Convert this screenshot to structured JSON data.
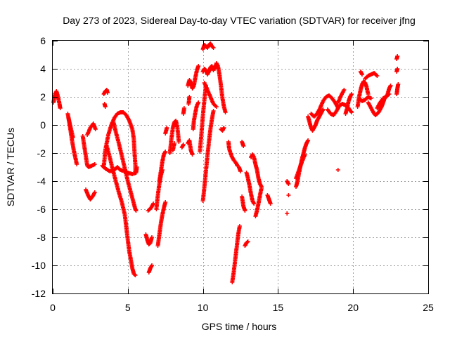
{
  "chart_data": {
    "type": "scatter",
    "title": "Day 273 of 2023, Sidereal Day-to-day VTEC variation (SDTVAR) for receiver jfng",
    "xlabel": "GPS time / hours",
    "ylabel": "SDTVAR / TECUs",
    "xlim": [
      0,
      25
    ],
    "ylim": [
      -12,
      6
    ],
    "xticks": [
      0,
      5,
      10,
      15,
      20,
      25
    ],
    "yticks": [
      -12,
      -10,
      -8,
      -6,
      -4,
      -2,
      0,
      2,
      4,
      6
    ],
    "grid": true,
    "marker": "plus",
    "color": "#ff0000",
    "segments": [
      [
        [
          0.05,
          1.6
        ],
        [
          0.15,
          2.2
        ],
        [
          0.25,
          2.4
        ],
        [
          0.35,
          2.0
        ],
        [
          0.45,
          1.5
        ],
        [
          0.5,
          1.2
        ]
      ],
      [
        [
          1.0,
          0.8
        ],
        [
          1.1,
          0.2
        ],
        [
          1.2,
          -0.5
        ],
        [
          1.3,
          -1.2
        ],
        [
          1.4,
          -1.8
        ],
        [
          1.5,
          -2.3
        ],
        [
          1.6,
          -2.8
        ]
      ],
      [
        [
          1.05,
          0.5
        ],
        [
          1.2,
          -0.2
        ],
        [
          1.35,
          -0.9
        ]
      ],
      [
        [
          2.0,
          -0.8
        ],
        [
          2.1,
          -1.5
        ],
        [
          2.2,
          -2.2
        ],
        [
          2.3,
          -2.9
        ],
        [
          2.4,
          -3.0
        ],
        [
          2.6,
          -2.9
        ],
        [
          2.8,
          -2.8
        ]
      ],
      [
        [
          2.2,
          -4.6
        ],
        [
          2.35,
          -5.0
        ],
        [
          2.5,
          -5.3
        ],
        [
          2.65,
          -5.1
        ],
        [
          2.8,
          -4.8
        ]
      ],
      [
        [
          2.3,
          -0.7
        ],
        [
          2.5,
          -0.2
        ],
        [
          2.7,
          0.1
        ],
        [
          2.85,
          -0.3
        ]
      ],
      [
        [
          3.4,
          2.2
        ],
        [
          3.5,
          2.4
        ],
        [
          3.6,
          2.5
        ],
        [
          3.65,
          2.3
        ]
      ],
      [
        [
          3.45,
          1.5
        ],
        [
          3.5,
          1.3
        ]
      ],
      [
        [
          3.4,
          -3.0
        ],
        [
          3.5,
          -1.8
        ],
        [
          3.7,
          -0.7
        ],
        [
          3.9,
          0.0
        ],
        [
          4.1,
          0.5
        ],
        [
          4.3,
          0.8
        ],
        [
          4.5,
          0.9
        ],
        [
          4.7,
          0.9
        ],
        [
          4.9,
          0.7
        ],
        [
          5.1,
          0.3
        ],
        [
          5.3,
          -0.3
        ],
        [
          5.4,
          -1.0
        ],
        [
          5.45,
          -2.0
        ],
        [
          5.5,
          -2.8
        ],
        [
          5.5,
          -3.4
        ]
      ],
      [
        [
          3.3,
          -2.9
        ],
        [
          3.5,
          -3.1
        ],
        [
          3.8,
          -3.3
        ],
        [
          4.1,
          -3.2
        ],
        [
          4.3,
          -3.0
        ],
        [
          4.5,
          -3.2
        ],
        [
          4.8,
          -3.3
        ],
        [
          5.0,
          -3.4
        ],
        [
          5.3,
          -3.5
        ],
        [
          5.55,
          -3.4
        ],
        [
          5.6,
          -3.0
        ]
      ],
      [
        [
          3.6,
          -1.5
        ],
        [
          3.8,
          -2.3
        ],
        [
          4.0,
          -3.2
        ],
        [
          4.2,
          -4.0
        ],
        [
          4.4,
          -4.8
        ],
        [
          4.6,
          -5.5
        ],
        [
          4.8,
          -6.4
        ],
        [
          4.9,
          -7.3
        ],
        [
          5.0,
          -8.2
        ],
        [
          5.1,
          -9.0
        ],
        [
          5.2,
          -9.6
        ],
        [
          5.3,
          -10.2
        ],
        [
          5.4,
          -10.6
        ],
        [
          5.5,
          -10.7
        ]
      ],
      [
        [
          4.05,
          0.2
        ],
        [
          4.2,
          -0.5
        ],
        [
          4.4,
          -1.3
        ],
        [
          4.6,
          -2.2
        ],
        [
          4.8,
          -3.1
        ],
        [
          5.0,
          -4.0
        ],
        [
          5.2,
          -4.8
        ],
        [
          5.4,
          -5.6
        ],
        [
          5.5,
          -6.0
        ],
        [
          5.55,
          -6.1
        ]
      ],
      [
        [
          6.2,
          -7.8
        ],
        [
          6.3,
          -8.2
        ],
        [
          6.4,
          -8.5
        ],
        [
          6.5,
          -8.4
        ],
        [
          6.6,
          -8.0
        ]
      ],
      [
        [
          6.35,
          -6.1
        ],
        [
          6.55,
          -5.9
        ],
        [
          6.7,
          -5.6
        ]
      ],
      [
        [
          6.4,
          -10.5
        ],
        [
          6.5,
          -10.2
        ],
        [
          6.6,
          -10.0
        ]
      ],
      [
        [
          6.9,
          -6.0
        ],
        [
          7.0,
          -5.0
        ],
        [
          7.1,
          -4.2
        ],
        [
          7.2,
          -3.6
        ],
        [
          7.3,
          -3.2
        ]
      ],
      [
        [
          7.0,
          -8.6
        ],
        [
          7.1,
          -7.8
        ],
        [
          7.2,
          -7.0
        ],
        [
          7.3,
          -6.4
        ],
        [
          7.4,
          -5.9
        ],
        [
          7.5,
          -5.5
        ]
      ],
      [
        [
          7.1,
          -4.0
        ],
        [
          7.2,
          -3.3
        ],
        [
          7.3,
          -2.6
        ],
        [
          7.4,
          -2.1
        ],
        [
          7.5,
          -1.9
        ]
      ],
      [
        [
          7.5,
          -0.6
        ],
        [
          7.6,
          -0.2
        ]
      ],
      [
        [
          7.8,
          -2.0
        ],
        [
          7.9,
          -1.0
        ],
        [
          8.0,
          -0.2
        ],
        [
          8.1,
          0.2
        ],
        [
          8.2,
          0.3
        ],
        [
          8.3,
          -0.2
        ],
        [
          8.4,
          -1.2
        ]
      ],
      [
        [
          8.0,
          -1.8
        ],
        [
          8.1,
          -1.3
        ]
      ],
      [
        [
          8.6,
          -1.6
        ],
        [
          8.7,
          -1.4
        ]
      ],
      [
        [
          8.7,
          0.8
        ],
        [
          8.75,
          1.2
        ]
      ],
      [
        [
          9.0,
          2.8
        ],
        [
          9.1,
          3.2
        ],
        [
          9.2,
          3.0
        ],
        [
          9.3,
          2.6
        ],
        [
          9.4,
          2.8
        ],
        [
          9.5,
          3.4
        ],
        [
          9.6,
          3.9
        ],
        [
          9.7,
          4.2
        ]
      ],
      [
        [
          9.05,
          1.5
        ],
        [
          9.1,
          2.0
        ]
      ],
      [
        [
          9.0,
          -1.3
        ],
        [
          9.1,
          -1.1
        ],
        [
          9.2,
          -1.8
        ],
        [
          9.3,
          -2.1
        ]
      ],
      [
        [
          9.35,
          -0.3
        ],
        [
          9.4,
          0.3
        ],
        [
          9.5,
          0.9
        ],
        [
          9.6,
          1.4
        ],
        [
          9.7,
          1.6
        ]
      ],
      [
        [
          9.8,
          -1.9
        ],
        [
          9.9,
          -0.6
        ],
        [
          10.0,
          0.7
        ],
        [
          10.1,
          1.8
        ],
        [
          10.2,
          2.8
        ]
      ],
      [
        [
          10.0,
          -5.4
        ],
        [
          10.1,
          -4.4
        ],
        [
          10.2,
          -3.3
        ],
        [
          10.3,
          -2.2
        ],
        [
          10.4,
          -1.2
        ],
        [
          10.5,
          -0.3
        ],
        [
          10.6,
          0.4
        ],
        [
          10.7,
          1.0
        ]
      ],
      [
        [
          10.0,
          5.4
        ],
        [
          10.1,
          5.7
        ],
        [
          10.2,
          5.6
        ],
        [
          10.3,
          5.5
        ],
        [
          10.4,
          5.7
        ],
        [
          10.5,
          5.8
        ],
        [
          10.6,
          5.6
        ],
        [
          10.7,
          5.5
        ]
      ],
      [
        [
          10.0,
          3.8
        ],
        [
          10.1,
          4.0
        ],
        [
          10.2,
          3.9
        ],
        [
          10.3,
          3.6
        ],
        [
          10.4,
          3.8
        ],
        [
          10.5,
          4.1
        ],
        [
          10.6,
          4.2
        ],
        [
          10.7,
          3.9
        ]
      ],
      [
        [
          10.1,
          3.0
        ],
        [
          10.3,
          2.5
        ],
        [
          10.5,
          2.0
        ],
        [
          10.7,
          1.5
        ],
        [
          10.9,
          1.3
        ]
      ],
      [
        [
          10.8,
          4.0
        ],
        [
          10.9,
          4.4
        ],
        [
          11.0,
          4.2
        ],
        [
          11.1,
          3.6
        ],
        [
          11.2,
          2.8
        ],
        [
          11.3,
          1.9
        ],
        [
          11.4,
          1.3
        ],
        [
          11.5,
          0.9
        ]
      ],
      [
        [
          11.2,
          -0.3
        ],
        [
          11.3,
          -0.4
        ],
        [
          11.4,
          -0.2
        ]
      ],
      [
        [
          11.7,
          -1.2
        ],
        [
          11.75,
          -1.7
        ],
        [
          11.9,
          -2.2
        ],
        [
          12.05,
          -2.5
        ],
        [
          12.2,
          -2.7
        ],
        [
          12.3,
          -2.9
        ]
      ],
      [
        [
          11.95,
          -11.2
        ],
        [
          12.05,
          -10.5
        ],
        [
          12.15,
          -9.6
        ],
        [
          12.25,
          -8.7
        ],
        [
          12.35,
          -7.8
        ],
        [
          12.45,
          -7.2
        ]
      ],
      [
        [
          12.4,
          -3.0
        ],
        [
          12.5,
          -3.3
        ]
      ],
      [
        [
          12.6,
          -1.2
        ],
        [
          12.7,
          -1.5
        ]
      ],
      [
        [
          12.6,
          -5.1
        ],
        [
          12.7,
          -5.8
        ],
        [
          12.8,
          -6.1
        ]
      ],
      [
        [
          12.9,
          -3.4
        ],
        [
          13.0,
          -3.8
        ],
        [
          13.1,
          -4.3
        ],
        [
          13.2,
          -4.9
        ],
        [
          13.3,
          -5.4
        ],
        [
          13.4,
          -5.6
        ]
      ],
      [
        [
          12.8,
          -8.6
        ],
        [
          12.9,
          -8.4
        ],
        [
          13.0,
          -8.3
        ]
      ],
      [
        [
          13.2,
          -2.3
        ],
        [
          13.3,
          -2.1
        ],
        [
          13.4,
          -2.3
        ],
        [
          13.5,
          -2.8
        ],
        [
          13.6,
          -3.2
        ],
        [
          13.7,
          -3.8
        ],
        [
          13.8,
          -4.2
        ],
        [
          13.9,
          -4.4
        ]
      ],
      [
        [
          13.5,
          -6.5
        ],
        [
          13.6,
          -6.1
        ],
        [
          13.7,
          -5.6
        ],
        [
          13.8,
          -5.0
        ],
        [
          13.9,
          -4.5
        ]
      ],
      [
        [
          14.3,
          -5.0
        ],
        [
          14.4,
          -5.3
        ],
        [
          14.5,
          -5.6
        ]
      ],
      [
        [
          15.6,
          -4.0
        ],
        [
          15.7,
          -4.2
        ]
      ],
      [
        [
          15.7,
          -5.0
        ]
      ],
      [
        [
          15.6,
          -6.3
        ]
      ],
      [
        [
          16.2,
          -4.4
        ],
        [
          16.3,
          -4.0
        ],
        [
          16.4,
          -3.4
        ],
        [
          16.5,
          -2.9
        ],
        [
          16.6,
          -2.4
        ],
        [
          16.7,
          -2.0
        ],
        [
          16.8,
          -1.6
        ],
        [
          16.9,
          -1.3
        ],
        [
          17.0,
          -1.1
        ]
      ],
      [
        [
          16.2,
          -3.8
        ],
        [
          16.4,
          -3.2
        ],
        [
          16.6,
          -2.6
        ],
        [
          16.8,
          -2.1
        ]
      ],
      [
        [
          17.0,
          0.6
        ],
        [
          17.1,
          0.2
        ],
        [
          17.2,
          -0.2
        ],
        [
          17.3,
          -0.4
        ],
        [
          17.4,
          -0.2
        ],
        [
          17.5,
          0.0
        ],
        [
          17.6,
          0.3
        ],
        [
          17.7,
          0.5
        ],
        [
          17.8,
          0.7
        ],
        [
          17.9,
          0.9
        ],
        [
          18.0,
          1.1
        ]
      ],
      [
        [
          17.2,
          0.8
        ],
        [
          17.4,
          0.6
        ],
        [
          17.6,
          0.8
        ],
        [
          17.8,
          1.2
        ],
        [
          18.0,
          1.7
        ],
        [
          18.2,
          2.0
        ],
        [
          18.4,
          2.1
        ],
        [
          18.6,
          1.9
        ],
        [
          18.8,
          1.6
        ],
        [
          19.0,
          1.2
        ]
      ],
      [
        [
          18.3,
          1.1
        ],
        [
          18.5,
          0.8
        ],
        [
          18.7,
          0.7
        ],
        [
          18.9,
          1.0
        ],
        [
          19.1,
          1.4
        ],
        [
          19.3,
          1.5
        ],
        [
          19.5,
          1.4
        ],
        [
          19.7,
          1.2
        ],
        [
          19.9,
          0.9
        ]
      ],
      [
        [
          19.0,
          1.6
        ],
        [
          19.2,
          2.1
        ],
        [
          19.4,
          2.5
        ]
      ],
      [
        [
          19.5,
          0.8
        ],
        [
          19.6,
          1.2
        ],
        [
          19.7,
          1.7
        ],
        [
          19.8,
          2.0
        ],
        [
          19.9,
          2.2
        ]
      ],
      [
        [
          19.0,
          -3.2
        ]
      ],
      [
        [
          20.3,
          1.3
        ],
        [
          20.4,
          2.0
        ],
        [
          20.5,
          2.5
        ],
        [
          20.6,
          2.9
        ],
        [
          20.7,
          3.1
        ],
        [
          20.8,
          3.0
        ],
        [
          20.9,
          2.7
        ],
        [
          21.0,
          2.2
        ]
      ],
      [
        [
          20.5,
          3.8
        ],
        [
          20.6,
          3.6
        ]
      ],
      [
        [
          20.8,
          3.3
        ],
        [
          21.0,
          3.5
        ],
        [
          21.2,
          3.6
        ],
        [
          21.4,
          3.7
        ],
        [
          21.6,
          3.5
        ]
      ],
      [
        [
          21.0,
          1.6
        ],
        [
          21.2,
          1.2
        ],
        [
          21.4,
          0.8
        ],
        [
          21.5,
          0.7
        ],
        [
          21.7,
          0.9
        ],
        [
          21.9,
          1.3
        ],
        [
          22.0,
          1.6
        ],
        [
          22.1,
          1.9
        ],
        [
          22.3,
          2.2
        ],
        [
          22.4,
          2.6
        ],
        [
          22.5,
          2.8
        ]
      ],
      [
        [
          21.6,
          1.2
        ],
        [
          21.8,
          1.6
        ],
        [
          22.0,
          1.9
        ],
        [
          22.2,
          2.0
        ],
        [
          22.4,
          2.2
        ]
      ],
      [
        [
          20.4,
          1.9
        ],
        [
          20.6,
          1.7
        ],
        [
          20.8,
          1.8
        ],
        [
          21.0,
          2.0
        ],
        [
          21.2,
          1.9
        ]
      ],
      [
        [
          22.9,
          2.2
        ],
        [
          22.95,
          2.6
        ],
        [
          23.0,
          2.9
        ]
      ],
      [
        [
          22.9,
          3.8
        ],
        [
          22.95,
          4.0
        ]
      ],
      [
        [
          22.9,
          4.7
        ],
        [
          22.95,
          4.9
        ]
      ]
    ]
  }
}
